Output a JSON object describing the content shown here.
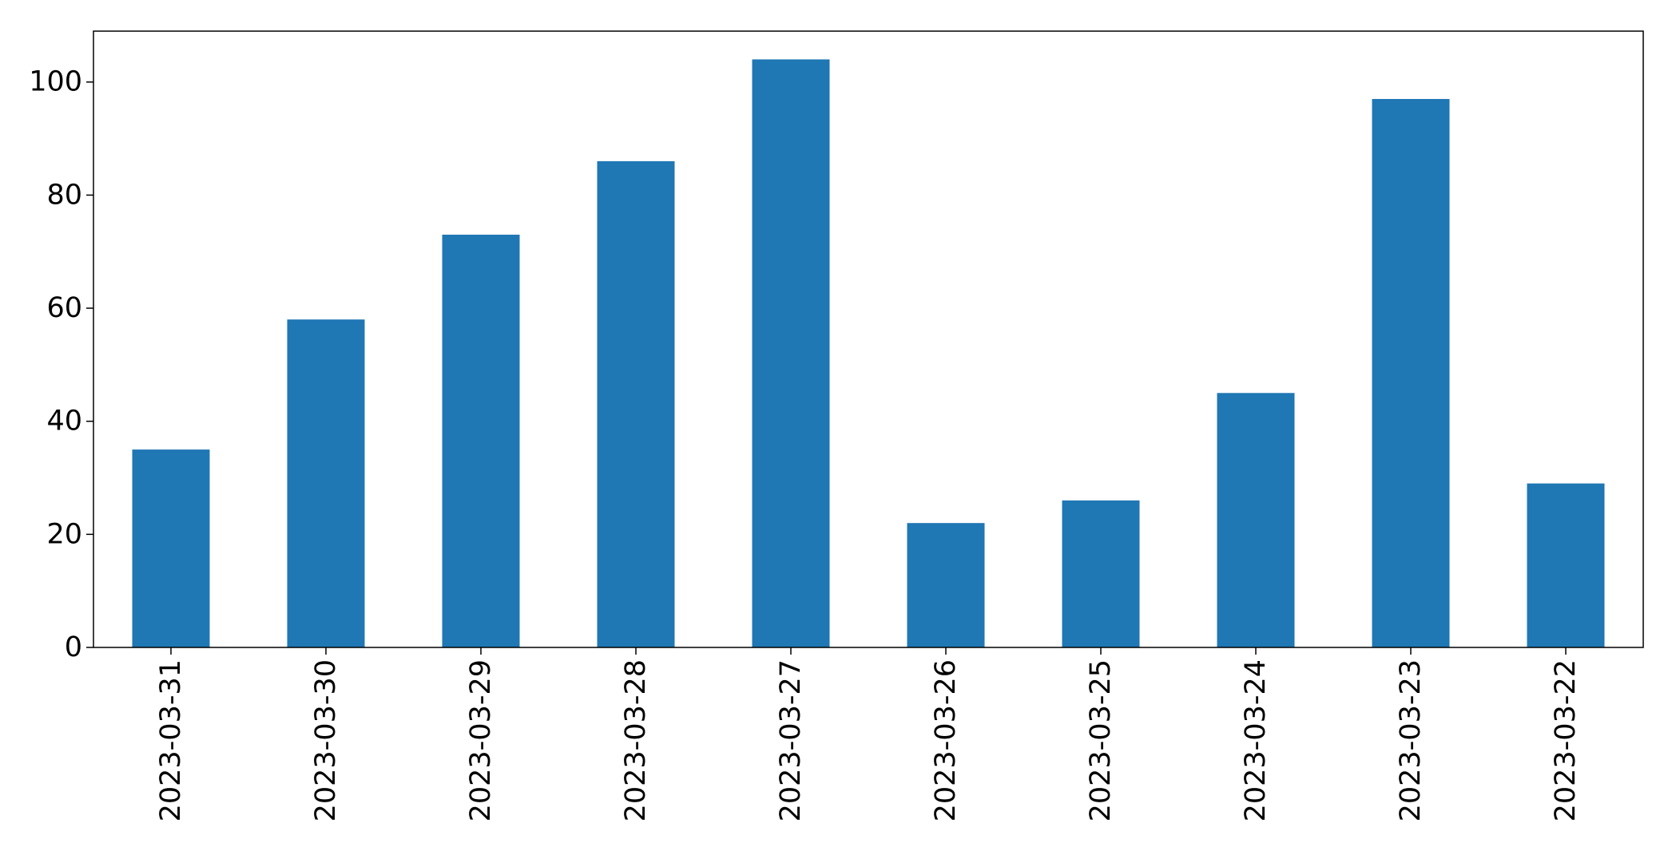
{
  "chart_data": {
    "type": "bar",
    "title": "",
    "xlabel": "",
    "ylabel": "",
    "categories": [
      "2023-03-31",
      "2023-03-30",
      "2023-03-29",
      "2023-03-28",
      "2023-03-27",
      "2023-03-26",
      "2023-03-25",
      "2023-03-24",
      "2023-03-23",
      "2023-03-22"
    ],
    "values": [
      35,
      58,
      73,
      86,
      104,
      22,
      26,
      45,
      97,
      29
    ],
    "ylim": [
      0,
      109
    ],
    "yticks": [
      "0",
      "20",
      "40",
      "60",
      "80",
      "100"
    ],
    "bar_color": "#1f77b4",
    "grid": false,
    "legend": false
  }
}
